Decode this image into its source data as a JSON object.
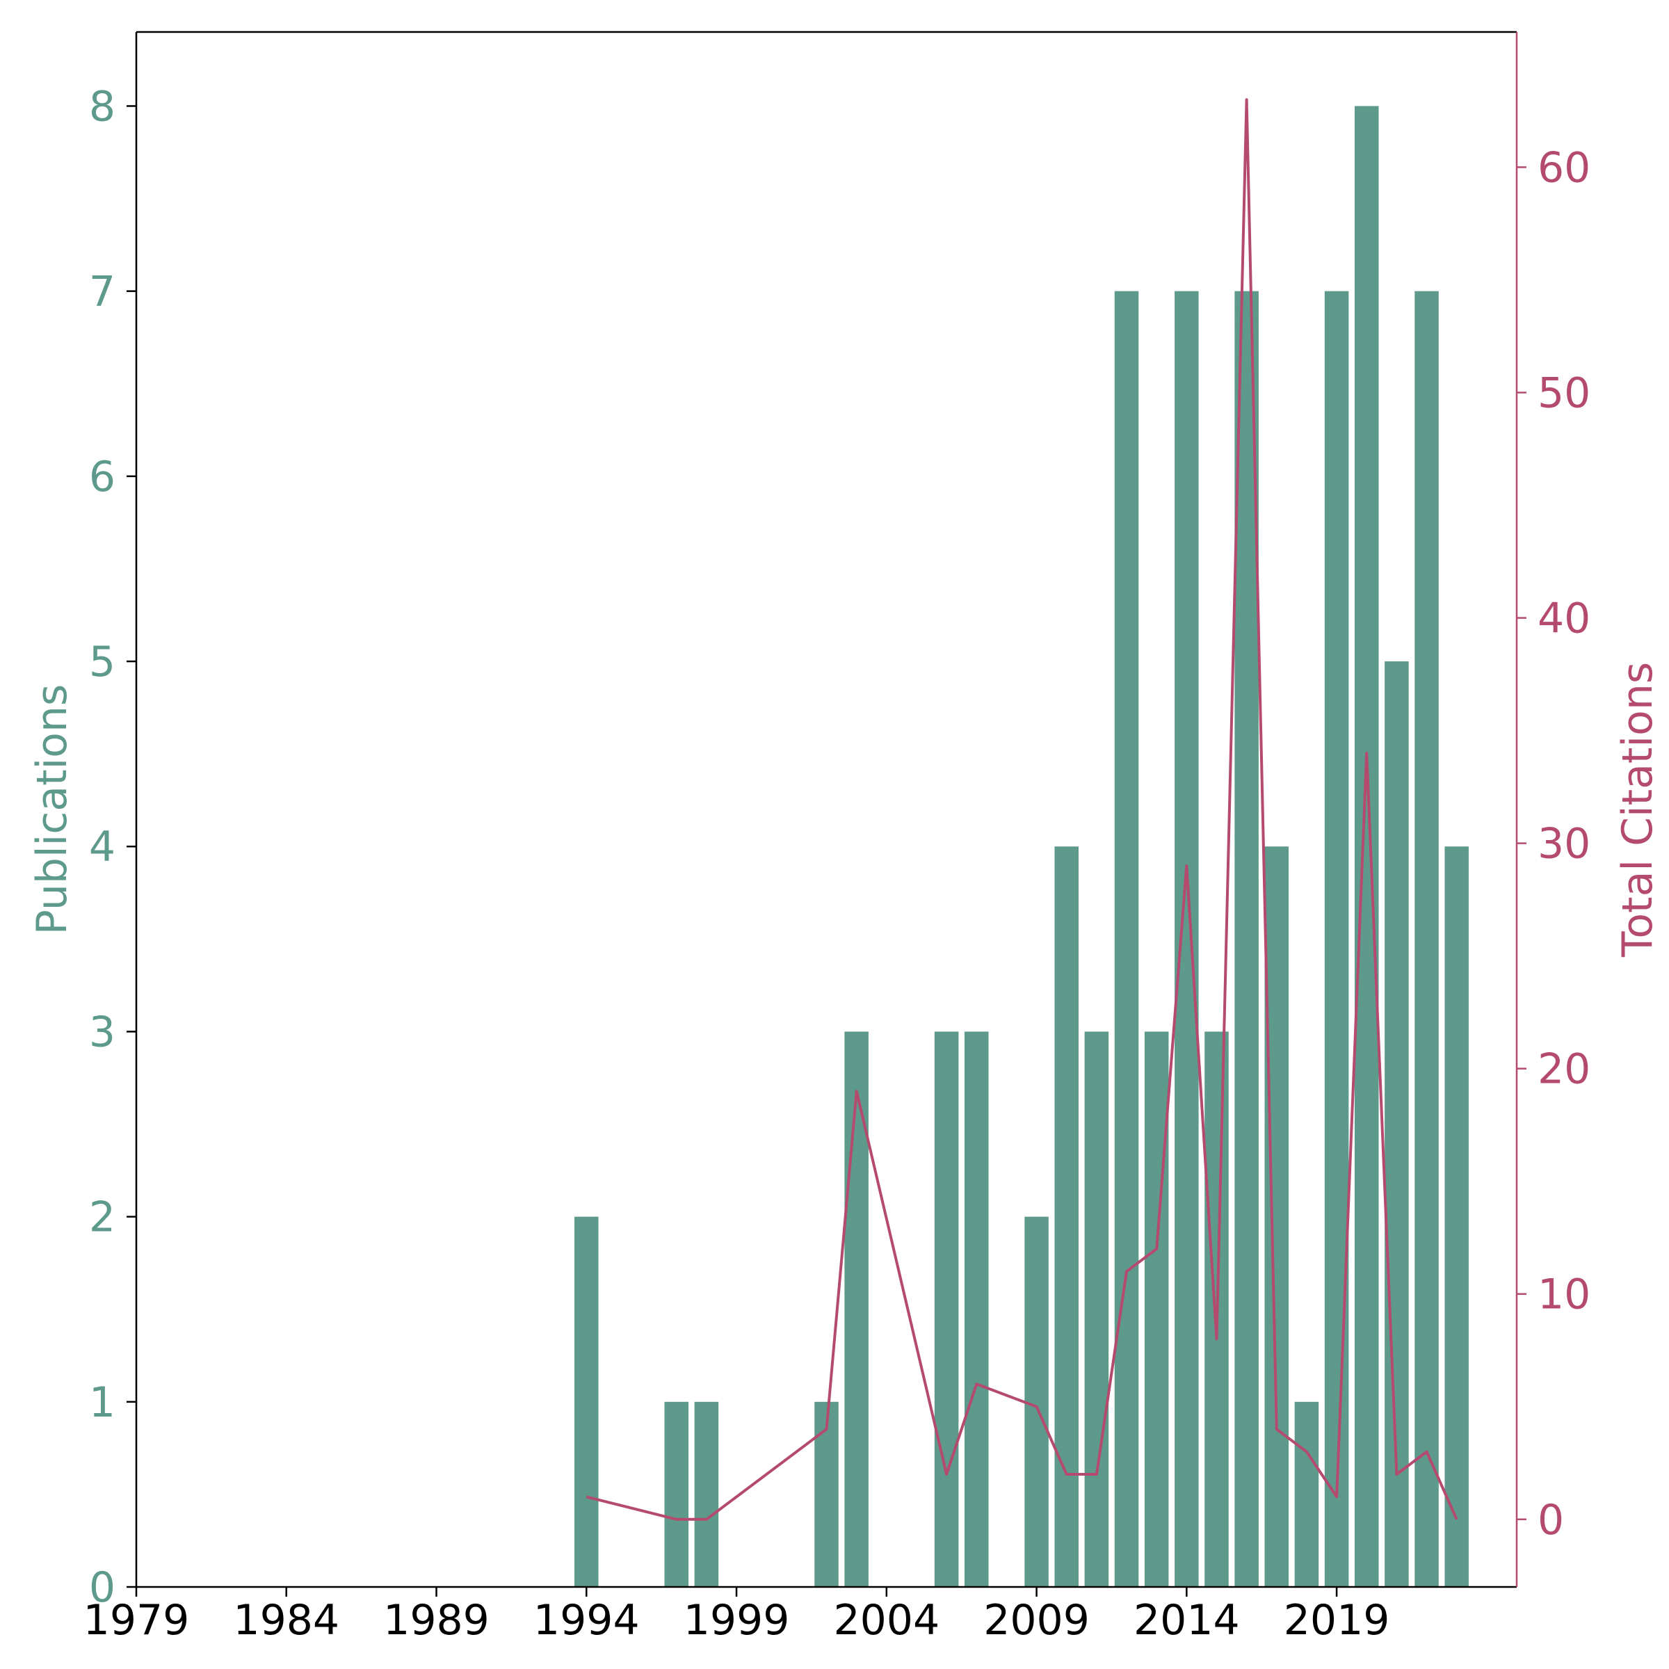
{
  "chart_data": {
    "type": "bar",
    "xlim": [
      1979,
      2025
    ],
    "x_ticks": [
      "1979",
      "1984",
      "1989",
      "1994",
      "1999",
      "2004",
      "2009",
      "2014",
      "2019"
    ],
    "y_left": {
      "label": "Publications",
      "range": [
        0,
        8.4
      ],
      "ticks": [
        "0",
        "1",
        "2",
        "3",
        "4",
        "5",
        "6",
        "7",
        "8"
      ],
      "color": "#5e9a8b"
    },
    "y_right": {
      "label": "Total Citations",
      "range": [
        -3,
        66
      ],
      "ticks": [
        "0",
        "10",
        "20",
        "30",
        "40",
        "50",
        "60"
      ],
      "color": "#b54a6f"
    },
    "series": [
      {
        "name": "Publications",
        "type": "bar",
        "axis": "left",
        "color": "#5e9a8b",
        "points": [
          {
            "x": 1994,
            "y": 2
          },
          {
            "x": 1997,
            "y": 1
          },
          {
            "x": 1998,
            "y": 1
          },
          {
            "x": 2002,
            "y": 1
          },
          {
            "x": 2003,
            "y": 3
          },
          {
            "x": 2006,
            "y": 3
          },
          {
            "x": 2007,
            "y": 3
          },
          {
            "x": 2009,
            "y": 2
          },
          {
            "x": 2010,
            "y": 4
          },
          {
            "x": 2011,
            "y": 3
          },
          {
            "x": 2012,
            "y": 7
          },
          {
            "x": 2013,
            "y": 3
          },
          {
            "x": 2014,
            "y": 7
          },
          {
            "x": 2015,
            "y": 3
          },
          {
            "x": 2016,
            "y": 7
          },
          {
            "x": 2017,
            "y": 4
          },
          {
            "x": 2018,
            "y": 1
          },
          {
            "x": 2019,
            "y": 7
          },
          {
            "x": 2020,
            "y": 8
          },
          {
            "x": 2021,
            "y": 5
          },
          {
            "x": 2022,
            "y": 7
          },
          {
            "x": 2023,
            "y": 4
          }
        ]
      },
      {
        "name": "Total Citations",
        "type": "line",
        "axis": "right",
        "color": "#b54a6f",
        "points": [
          {
            "x": 1994,
            "y": 1
          },
          {
            "x": 1997,
            "y": 0
          },
          {
            "x": 1998,
            "y": 0
          },
          {
            "x": 2002,
            "y": 4
          },
          {
            "x": 2003,
            "y": 19
          },
          {
            "x": 2006,
            "y": 2
          },
          {
            "x": 2007,
            "y": 6
          },
          {
            "x": 2009,
            "y": 5
          },
          {
            "x": 2010,
            "y": 2
          },
          {
            "x": 2011,
            "y": 2
          },
          {
            "x": 2012,
            "y": 11
          },
          {
            "x": 2013,
            "y": 12
          },
          {
            "x": 2014,
            "y": 29
          },
          {
            "x": 2015,
            "y": 8
          },
          {
            "x": 2016,
            "y": 63
          },
          {
            "x": 2017,
            "y": 4
          },
          {
            "x": 2018,
            "y": 3
          },
          {
            "x": 2019,
            "y": 1
          },
          {
            "x": 2020,
            "y": 34
          },
          {
            "x": 2021,
            "y": 2
          },
          {
            "x": 2022,
            "y": 3
          },
          {
            "x": 2023,
            "y": 0
          }
        ]
      }
    ],
    "grid": false
  }
}
